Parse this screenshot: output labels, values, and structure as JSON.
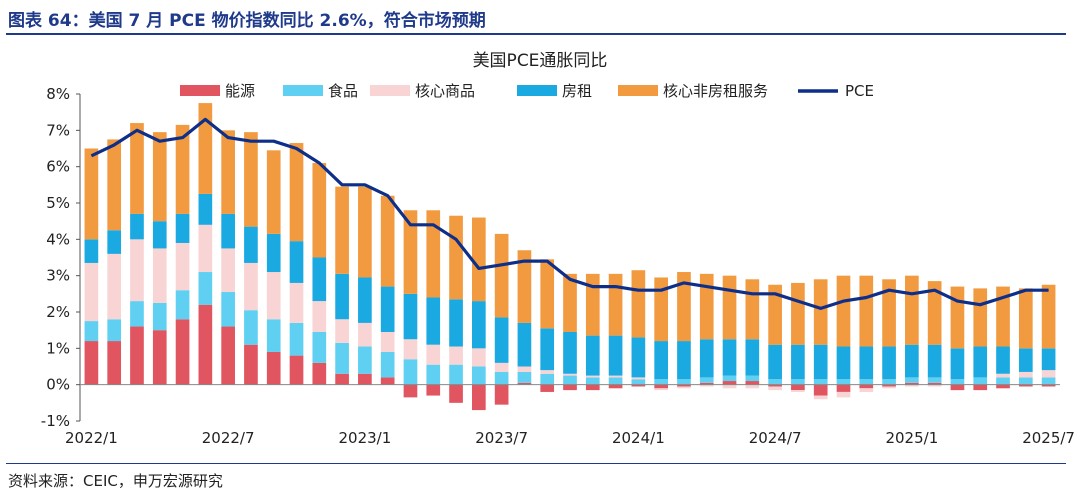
{
  "figure_title": "图表 64：美国 7 月 PCE 物价指数同比 2.6%，符合市场预期",
  "source": "资料来源：CEIC，申万宏源研究",
  "colors": {
    "energy": "#e05560",
    "food": "#5fd0f2",
    "core_goods": "#f8d4d4",
    "rent": "#1ba9e1",
    "core_services": "#f29a3f",
    "pce": "#0d2f8a",
    "title": "#1f3a8a"
  },
  "chart_data": {
    "type": "bar",
    "stacked": true,
    "title": "美国PCE通胀同比",
    "x_tick_labels": [
      "2022/1",
      "2022/7",
      "2023/1",
      "2023/7",
      "2024/1",
      "2024/7",
      "2025/1",
      "2025/7"
    ],
    "y_tick_labels": [
      "-1%",
      "0%",
      "1%",
      "2%",
      "3%",
      "4%",
      "5%",
      "6%",
      "7%",
      "8%"
    ],
    "ylim": [
      -1,
      8
    ],
    "legend_position": "top",
    "categories": [
      "2022/1",
      "2022/2",
      "2022/3",
      "2022/4",
      "2022/5",
      "2022/6",
      "2022/7",
      "2022/8",
      "2022/9",
      "2022/10",
      "2022/11",
      "2022/12",
      "2023/1",
      "2023/2",
      "2023/3",
      "2023/4",
      "2023/5",
      "2023/6",
      "2023/7",
      "2023/8",
      "2023/9",
      "2023/10",
      "2023/11",
      "2023/12",
      "2024/1",
      "2024/2",
      "2024/3",
      "2024/4",
      "2024/5",
      "2024/6",
      "2024/7",
      "2024/8",
      "2024/9",
      "2024/10",
      "2024/11",
      "2024/12",
      "2025/1",
      "2025/2",
      "2025/3",
      "2025/4",
      "2025/5",
      "2025/6",
      "2025/7"
    ],
    "series": [
      {
        "name": "能源",
        "values": [
          1.2,
          1.2,
          1.6,
          1.5,
          1.8,
          2.2,
          1.6,
          1.1,
          0.9,
          0.8,
          0.6,
          0.3,
          0.3,
          0.2,
          -0.35,
          -0.3,
          -0.5,
          -0.7,
          -0.55,
          0.05,
          -0.2,
          -0.15,
          -0.15,
          -0.1,
          -0.05,
          -0.1,
          -0.05,
          0.05,
          0.1,
          0.1,
          -0.05,
          -0.15,
          -0.3,
          -0.2,
          -0.1,
          -0.05,
          0.05,
          0.05,
          -0.15,
          -0.15,
          -0.1,
          -0.05,
          -0.05
        ]
      },
      {
        "name": "食品",
        "values": [
          0.55,
          0.6,
          0.7,
          0.75,
          0.8,
          0.9,
          0.95,
          0.95,
          0.9,
          0.9,
          0.85,
          0.85,
          0.75,
          0.7,
          0.7,
          0.55,
          0.55,
          0.5,
          0.35,
          0.3,
          0.3,
          0.25,
          0.2,
          0.2,
          0.15,
          0.15,
          0.15,
          0.15,
          0.15,
          0.15,
          0.15,
          0.15,
          0.15,
          0.15,
          0.15,
          0.15,
          0.15,
          0.15,
          0.15,
          0.2,
          0.2,
          0.2,
          0.2
        ]
      },
      {
        "name": "核心商品",
        "values": [
          1.6,
          1.8,
          1.7,
          1.5,
          1.3,
          1.3,
          1.2,
          1.3,
          1.3,
          1.1,
          0.85,
          0.65,
          0.65,
          0.55,
          0.55,
          0.55,
          0.5,
          0.5,
          0.25,
          0.15,
          0.1,
          0.05,
          0.05,
          0.05,
          0.05,
          -0.05,
          -0.05,
          -0.05,
          -0.1,
          -0.1,
          -0.1,
          -0.05,
          -0.1,
          -0.15,
          -0.1,
          -0.05,
          -0.05,
          -0.05,
          0,
          0,
          0.1,
          0.15,
          0.2
        ]
      },
      {
        "name": "房租",
        "values": [
          0.65,
          0.65,
          0.7,
          0.75,
          0.8,
          0.85,
          0.95,
          1.0,
          1.05,
          1.15,
          1.2,
          1.25,
          1.25,
          1.25,
          1.25,
          1.3,
          1.3,
          1.3,
          1.25,
          1.2,
          1.15,
          1.15,
          1.1,
          1.1,
          1.1,
          1.05,
          1.05,
          1.05,
          1.0,
          1.0,
          0.95,
          0.95,
          0.95,
          0.9,
          0.9,
          0.9,
          0.9,
          0.9,
          0.85,
          0.85,
          0.75,
          0.65,
          0.6
        ]
      },
      {
        "name": "核心非房租服务",
        "values": [
          2.5,
          2.5,
          2.5,
          2.45,
          2.45,
          2.5,
          2.3,
          2.6,
          2.3,
          2.7,
          2.6,
          2.4,
          2.5,
          2.5,
          2.3,
          2.4,
          2.3,
          2.3,
          2.3,
          2.0,
          1.9,
          1.6,
          1.7,
          1.7,
          1.85,
          1.75,
          1.9,
          1.8,
          1.75,
          1.65,
          1.65,
          1.7,
          1.8,
          1.95,
          1.95,
          1.85,
          1.9,
          1.75,
          1.7,
          1.6,
          1.65,
          1.65,
          1.75
        ]
      },
      {
        "name": "PCE",
        "type": "line",
        "values": [
          6.3,
          6.6,
          7.0,
          6.7,
          6.8,
          7.3,
          6.8,
          6.7,
          6.7,
          6.5,
          6.1,
          5.5,
          5.5,
          5.2,
          4.4,
          4.4,
          4.0,
          3.2,
          3.3,
          3.4,
          3.4,
          2.9,
          2.7,
          2.7,
          2.6,
          2.6,
          2.8,
          2.7,
          2.6,
          2.5,
          2.5,
          2.3,
          2.1,
          2.3,
          2.4,
          2.6,
          2.5,
          2.6,
          2.3,
          2.2,
          2.4,
          2.6,
          2.6
        ]
      }
    ]
  }
}
